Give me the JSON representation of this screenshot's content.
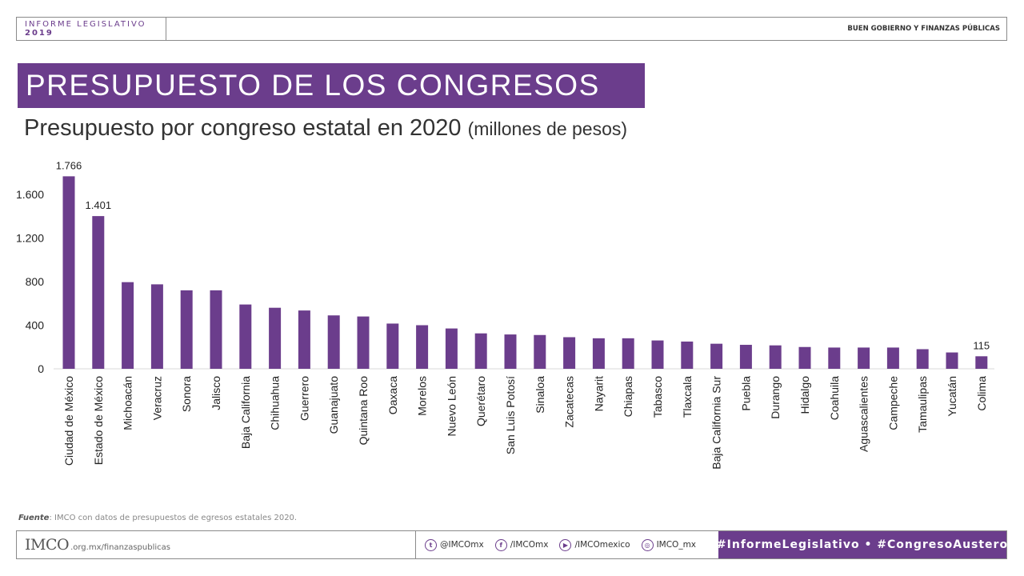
{
  "header": {
    "report": "INFORME LEGISLATIVO",
    "report_year": "2019",
    "section": "BUEN GOBIERNO Y FINANZAS PÚBLICAS"
  },
  "title": "PRESUPUESTO DE LOS CONGRESOS",
  "subtitle": {
    "main": "Presupuesto por congreso estatal en 2020",
    "unit": "(millones de pesos)"
  },
  "colors": {
    "accent": "#6b3d8c",
    "bar": "#6b3d8c"
  },
  "chart_data": {
    "type": "bar",
    "title": "Presupuesto por congreso estatal en 2020 (millones de pesos)",
    "xlabel": "",
    "ylabel": "",
    "ylim": [
      0,
      1800
    ],
    "yticks": [
      0,
      400,
      800,
      1200,
      1600
    ],
    "ytick_labels": [
      "0",
      "400",
      "800",
      "1.200",
      "1.600"
    ],
    "grid": false,
    "categories": [
      "Ciudad de México",
      "Estado de México",
      "Michoacán",
      "Veracruz",
      "Sonora",
      "Jalisco",
      "Baja California",
      "Chihuahua",
      "Guerrero",
      "Guanajuato",
      "Quintana Roo",
      "Oaxaca",
      "Morelos",
      "Nuevo León",
      "Querétaro",
      "San Luis Potosí",
      "Sinaloa",
      "Zacatecas",
      "Nayarit",
      "Chiapas",
      "Tabasco",
      "Tlaxcala",
      "Baja California Sur",
      "Puebla",
      "Durango",
      "Hidalgo",
      "Coahuila",
      "Aguascalientes",
      "Campeche",
      "Tamaulipas",
      "Yucatán",
      "Colima"
    ],
    "values": [
      1766,
      1401,
      795,
      775,
      720,
      720,
      590,
      560,
      535,
      490,
      480,
      415,
      400,
      370,
      325,
      315,
      310,
      290,
      280,
      280,
      260,
      250,
      230,
      220,
      215,
      200,
      195,
      195,
      195,
      180,
      150,
      115
    ],
    "data_labels": [
      {
        "index": 0,
        "text": "1.766"
      },
      {
        "index": 1,
        "text": "1.401"
      },
      {
        "index": 31,
        "text": "115"
      }
    ]
  },
  "footer": {
    "source_label": "Fuente",
    "source_text": ": IMCO con datos de presupuestos de egresos estatales 2020.",
    "logo": "IMCO",
    "logo_url": ".org.mx/finanzaspublicas",
    "social": [
      {
        "icon": "twitter-icon",
        "glyph": "t",
        "handle": "@IMCOmx"
      },
      {
        "icon": "facebook-icon",
        "glyph": "f",
        "handle": "/IMCOmx"
      },
      {
        "icon": "youtube-icon",
        "glyph": "▶",
        "handle": "/IMCOmexico"
      },
      {
        "icon": "instagram-icon",
        "glyph": "◎",
        "handle": "IMCO_mx"
      }
    ],
    "hashtags": "#InformeLegislativo • #CongresoAustero"
  }
}
